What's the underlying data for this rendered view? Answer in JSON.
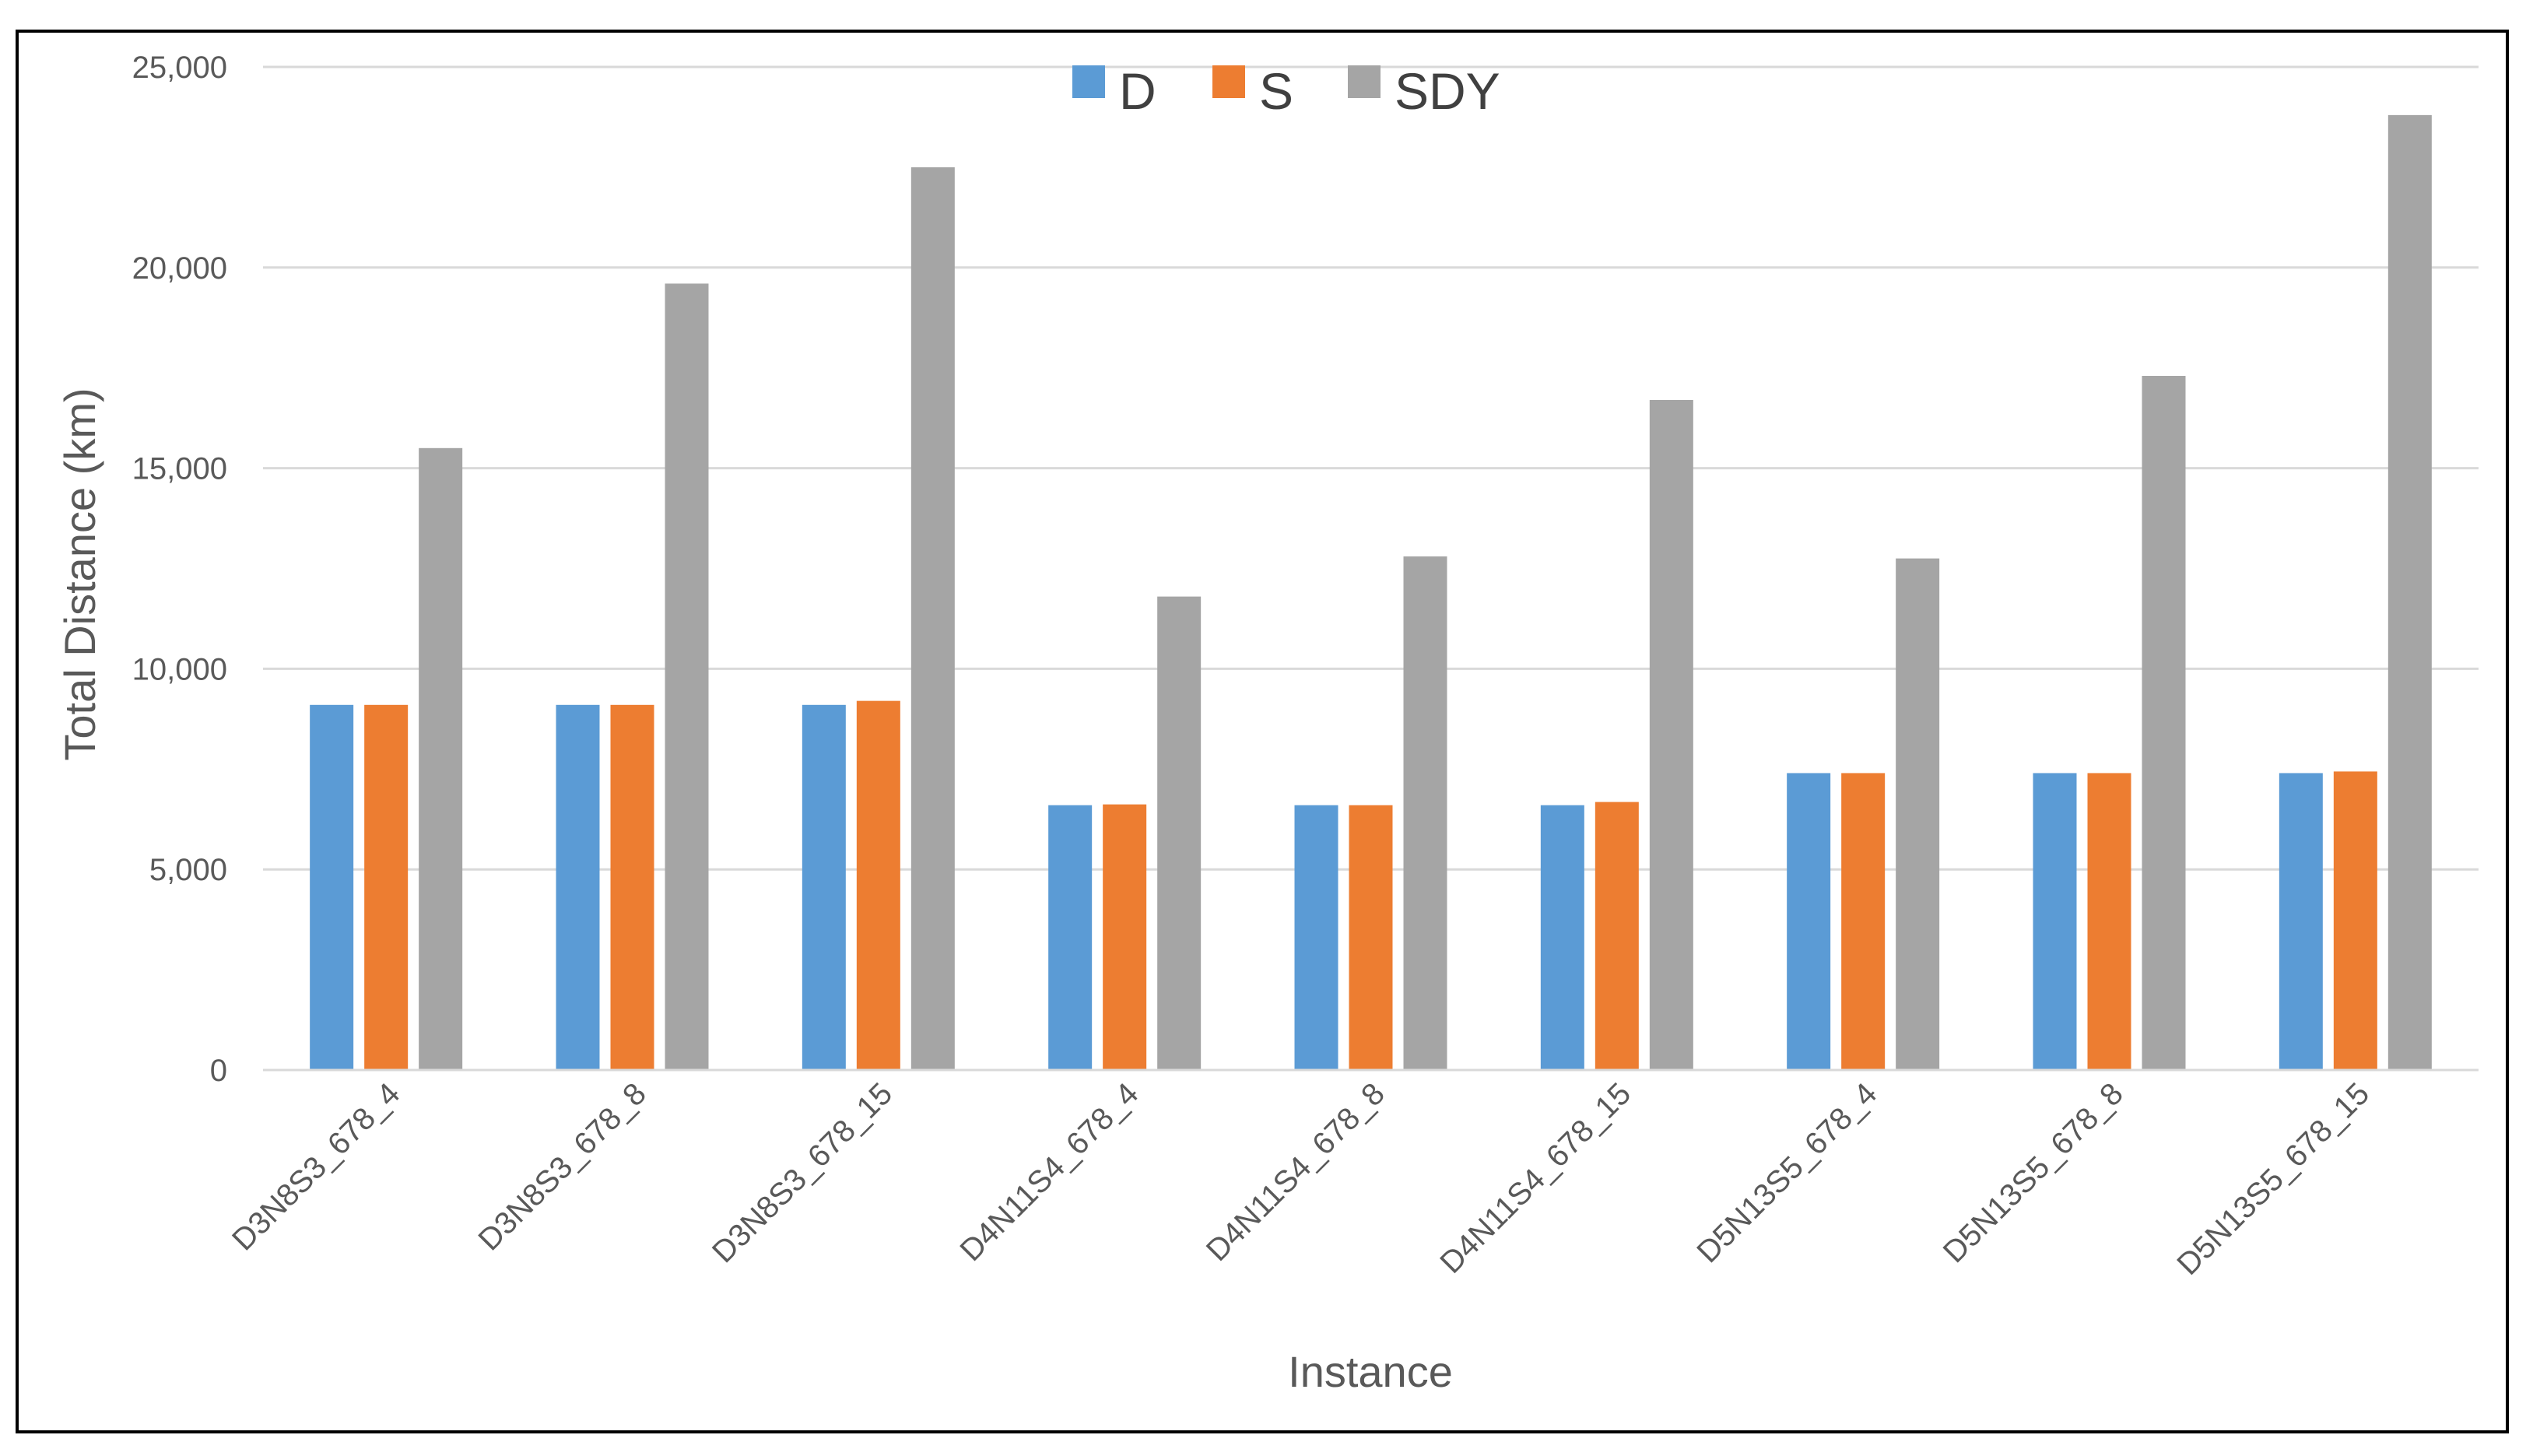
{
  "chart_data": {
    "type": "bar",
    "title": "",
    "xlabel": "Instance",
    "ylabel": "Total Distance (km)",
    "ylim": [
      0,
      25000
    ],
    "yticks": [
      0,
      5000,
      10000,
      15000,
      20000,
      25000
    ],
    "ytick_labels": [
      "0",
      "5,000",
      "10,000",
      "15,000",
      "20,000",
      "25,000"
    ],
    "grid": true,
    "legend_position": "top-center",
    "categories": [
      "D3N8S3_678_4",
      "D3N8S3_678_8",
      "D3N8S3_678_15",
      "D4N11S4_678_4",
      "D4N11S4_678_8",
      "D4N11S4_678_15",
      "D5N13S5_678_4",
      "D5N13S5_678_8",
      "D5N13S5_678_15"
    ],
    "series": [
      {
        "name": "D",
        "color": "#5B9BD5",
        "values": [
          9100,
          9100,
          9100,
          6600,
          6600,
          6600,
          7400,
          7400,
          7400
        ]
      },
      {
        "name": "S",
        "color": "#ED7D31",
        "values": [
          9100,
          9100,
          9200,
          6620,
          6600,
          6680,
          7400,
          7400,
          7440
        ]
      },
      {
        "name": "SDY",
        "color": "#A5A5A5",
        "values": [
          15500,
          19600,
          22500,
          11800,
          12800,
          16700,
          12750,
          17300,
          23800
        ]
      }
    ]
  }
}
